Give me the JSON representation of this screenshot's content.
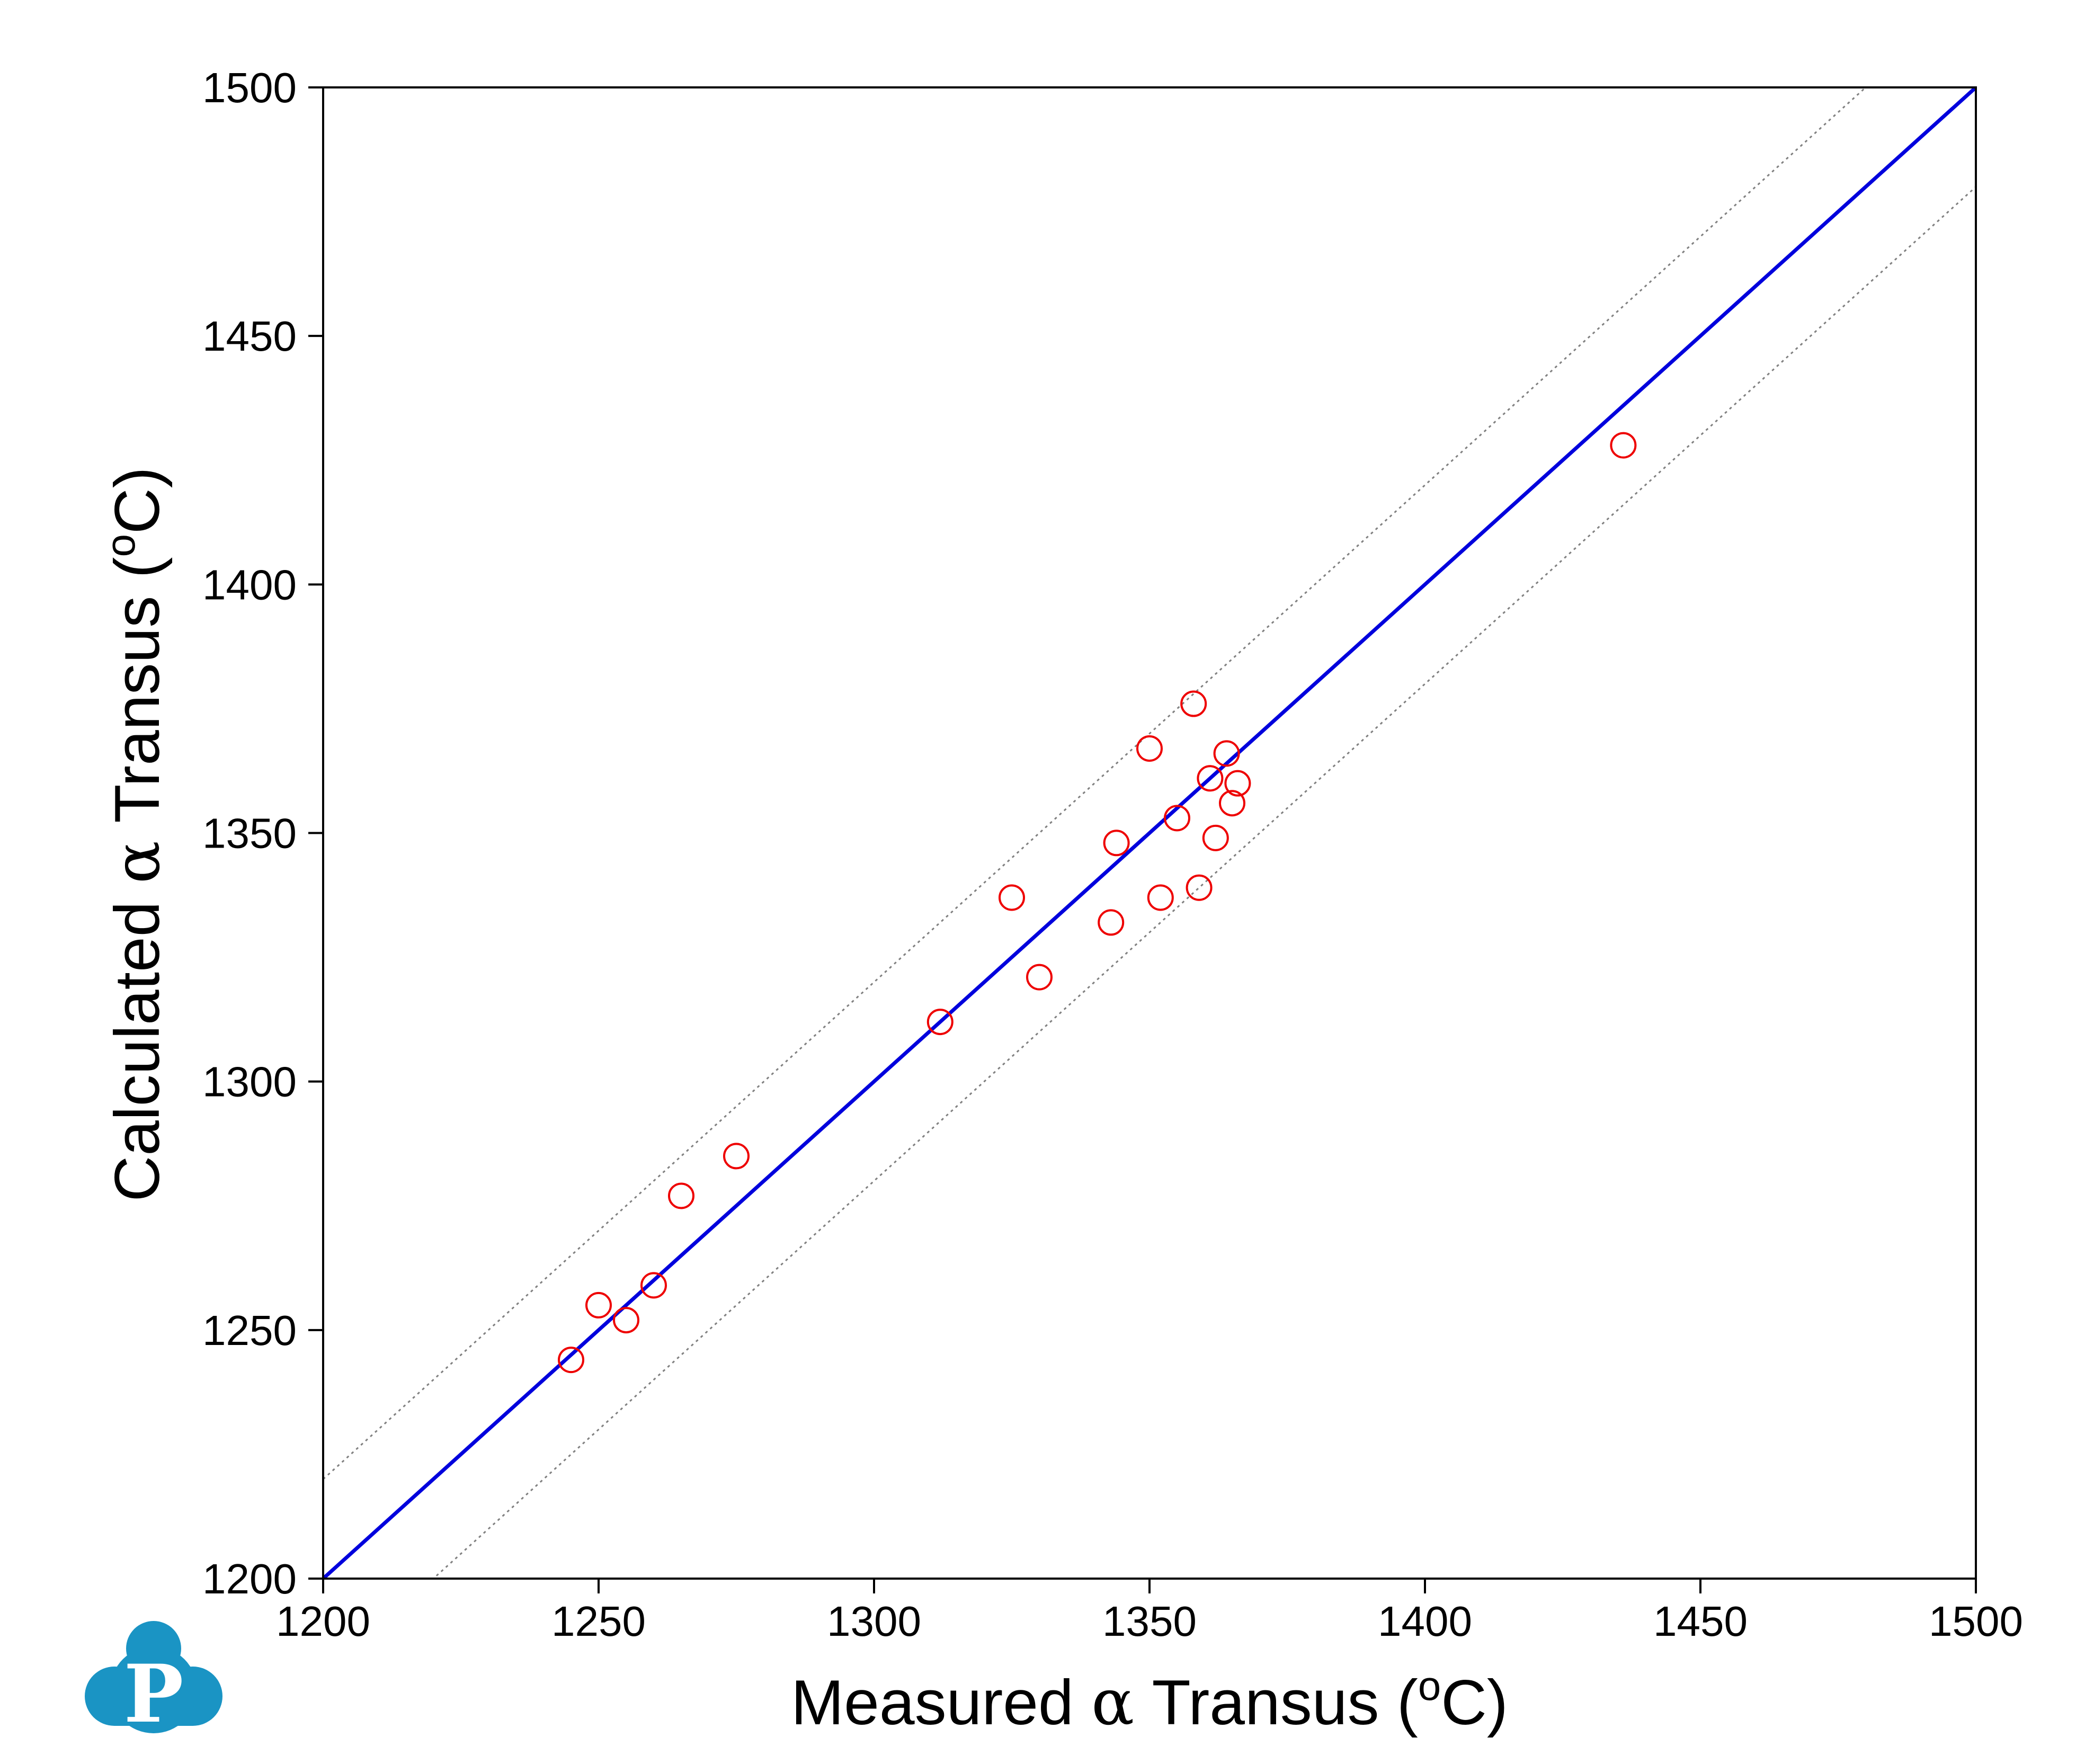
{
  "chart_data": {
    "type": "scatter",
    "title": "",
    "xlabel": {
      "prefix": "Measured ",
      "greek": "α",
      "mid": " Transus (",
      "sup": "o",
      "suffix": "C)"
    },
    "ylabel": {
      "prefix": "Calculated ",
      "greek": "α",
      "mid": " Transus (",
      "sup": "o",
      "suffix": "C)"
    },
    "xlim": [
      1200,
      1500
    ],
    "ylim": [
      1200,
      1500
    ],
    "xticks": [
      1200,
      1250,
      1300,
      1350,
      1400,
      1450,
      1500
    ],
    "yticks": [
      1200,
      1250,
      1300,
      1350,
      1400,
      1450,
      1500
    ],
    "x_tick_labels": [
      "1200",
      "1250",
      "1300",
      "1350",
      "1400",
      "1450",
      "1500"
    ],
    "y_tick_labels": [
      "1200",
      "1250",
      "1300",
      "1350",
      "1400",
      "1450",
      "1500"
    ],
    "grid": false,
    "reference_lines": [
      {
        "role": "identity",
        "offset": 0,
        "color": "#0000dd",
        "style": "solid"
      },
      {
        "role": "upper-bound",
        "offset": 20,
        "color": "#808080",
        "style": "dotted"
      },
      {
        "role": "lower-bound",
        "offset": -20,
        "color": "#808080",
        "style": "dotted"
      }
    ],
    "series": [
      {
        "marker": "open-circle",
        "color": "#ee0000",
        "points": [
          {
            "x": 1245,
            "y": 1244
          },
          {
            "x": 1250,
            "y": 1255
          },
          {
            "x": 1255,
            "y": 1252
          },
          {
            "x": 1260,
            "y": 1259
          },
          {
            "x": 1265,
            "y": 1277
          },
          {
            "x": 1275,
            "y": 1285
          },
          {
            "x": 1312,
            "y": 1312
          },
          {
            "x": 1325,
            "y": 1337
          },
          {
            "x": 1330,
            "y": 1321
          },
          {
            "x": 1343,
            "y": 1332
          },
          {
            "x": 1344,
            "y": 1348
          },
          {
            "x": 1350,
            "y": 1367
          },
          {
            "x": 1352,
            "y": 1337
          },
          {
            "x": 1355,
            "y": 1353
          },
          {
            "x": 1358,
            "y": 1376
          },
          {
            "x": 1359,
            "y": 1339
          },
          {
            "x": 1361,
            "y": 1361
          },
          {
            "x": 1362,
            "y": 1349
          },
          {
            "x": 1364,
            "y": 1366
          },
          {
            "x": 1365,
            "y": 1356
          },
          {
            "x": 1366,
            "y": 1360
          },
          {
            "x": 1436,
            "y": 1428
          }
        ]
      }
    ]
  },
  "logo": {
    "name": "pandat-logo",
    "letter": "P",
    "color": "#1a94c4"
  }
}
